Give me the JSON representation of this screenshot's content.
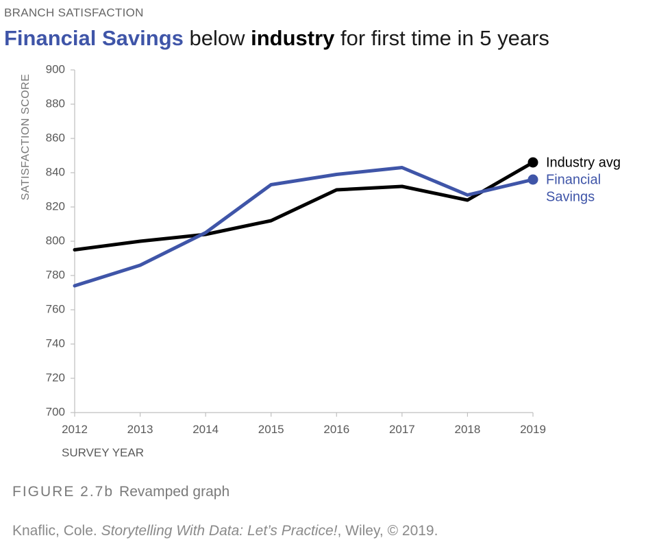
{
  "header": {
    "kicker": "BRANCH SATISFACTION",
    "title_part1": "Financial Savings",
    "title_part2": " below ",
    "title_part3": "industry",
    "title_part4": " for first time in 5 years"
  },
  "chart_data": {
    "type": "line",
    "title": "Financial Savings below industry for first time in 5 years",
    "xlabel": "SURVEY YEAR",
    "ylabel": "SATISFACTION SCORE",
    "x": [
      "2012",
      "2013",
      "2014",
      "2015",
      "2016",
      "2017",
      "2018",
      "2019"
    ],
    "ylim": [
      700,
      900
    ],
    "yticks": [
      700,
      720,
      740,
      760,
      780,
      800,
      820,
      840,
      860,
      880,
      900
    ],
    "grid": false,
    "series": [
      {
        "name": "Industry avg",
        "label_lines": [
          "Industry avg"
        ],
        "color": "#000000",
        "values": [
          795,
          800,
          804,
          812,
          830,
          832,
          824,
          846
        ]
      },
      {
        "name": "Financial Savings",
        "label_lines": [
          "Financial",
          "Savings"
        ],
        "color": "#3f55a8",
        "values": [
          774,
          786,
          805,
          833,
          839,
          843,
          827,
          836
        ]
      }
    ]
  },
  "caption": {
    "figure_number": "FIGURE 2.7b",
    "figure_title": "Revamped graph"
  },
  "credit": {
    "author": "Knaflic, Cole. ",
    "book": "Storytelling With Data: Let’s Practice!",
    "rest": ", Wiley, © 2019."
  }
}
